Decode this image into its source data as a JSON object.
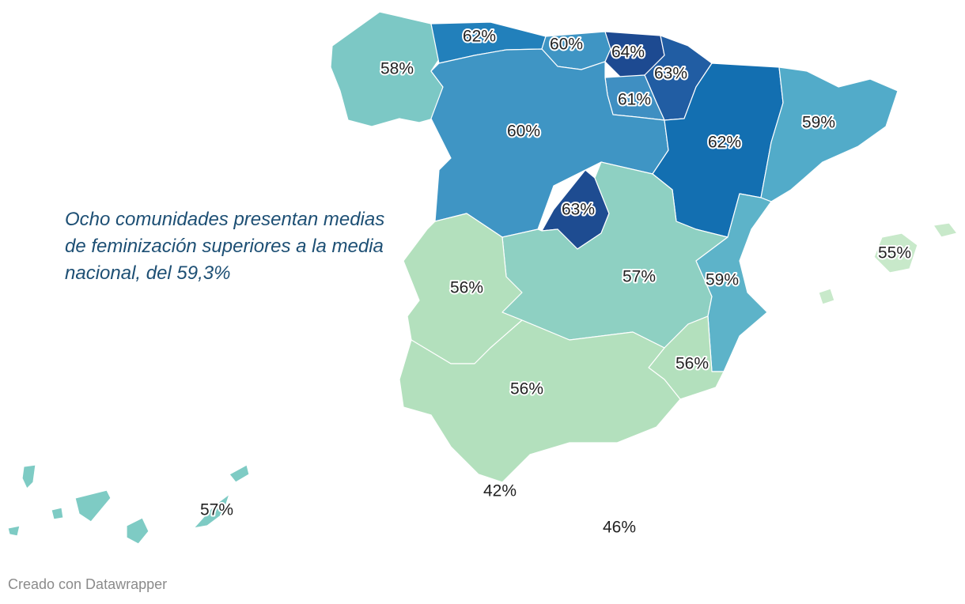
{
  "chart_data": {
    "type": "choropleth",
    "annotation": "Ocho comunidades presentan medias de feminización superiores a la media nacional, del 59,3%",
    "regions": [
      {
        "id": "galicia",
        "label": "58%",
        "value": 58,
        "color": "#7cc8c5"
      },
      {
        "id": "asturias",
        "label": "62%",
        "value": 62,
        "color": "#2280bb"
      },
      {
        "id": "cantabria",
        "label": "60%",
        "value": 60,
        "color": "#3f95c4"
      },
      {
        "id": "pais-vasco",
        "label": "64%",
        "value": 64,
        "color": "#1d4a91"
      },
      {
        "id": "navarra",
        "label": "63%",
        "value": 63,
        "color": "#215da3"
      },
      {
        "id": "la-rioja",
        "label": "61%",
        "value": 61,
        "color": "#3f8fc2"
      },
      {
        "id": "castilla-leon",
        "label": "60%",
        "value": 60,
        "color": "#3f95c4"
      },
      {
        "id": "aragon",
        "label": "62%",
        "value": 62,
        "color": "#136fb1"
      },
      {
        "id": "cataluna",
        "label": "59%",
        "value": 59,
        "color": "#52abc9"
      },
      {
        "id": "madrid",
        "label": "63%",
        "value": 63,
        "color": "#1e4c91"
      },
      {
        "id": "extremadura",
        "label": "56%",
        "value": 56,
        "color": "#b3e0bd"
      },
      {
        "id": "castilla-la-mancha",
        "label": "57%",
        "value": 57,
        "color": "#8ed0c2"
      },
      {
        "id": "valencia",
        "label": "59%",
        "value": 59,
        "color": "#5db3c9"
      },
      {
        "id": "murcia",
        "label": "56%",
        "value": 56,
        "color": "#b3e0bd"
      },
      {
        "id": "andalucia",
        "label": "56%",
        "value": 56,
        "color": "#b3e0bd"
      },
      {
        "id": "baleares",
        "label": "55%",
        "value": 55,
        "color": "#c8e9ca"
      },
      {
        "id": "canarias",
        "label": "57%",
        "value": 57,
        "color": "#7ecbc4"
      },
      {
        "id": "ceuta",
        "label": "42%",
        "value": 42,
        "color": "#eef8ee"
      },
      {
        "id": "melilla",
        "label": "46%",
        "value": 46,
        "color": "#eef8ee"
      }
    ]
  },
  "footer": {
    "credit": "Creado con Datawrapper"
  }
}
